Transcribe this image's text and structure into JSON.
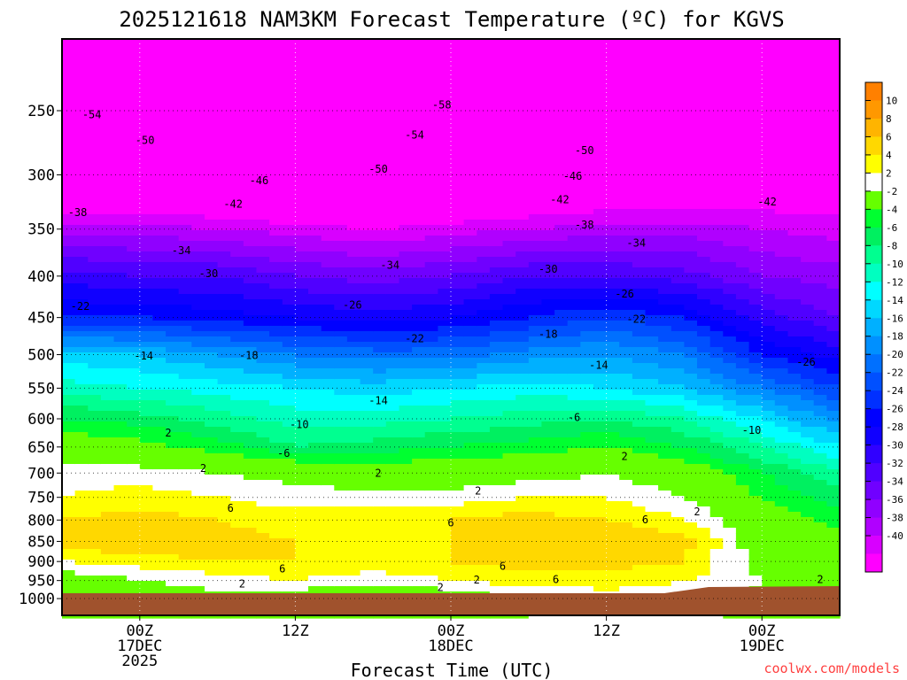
{
  "chart_data": {
    "type": "heatmap",
    "title": "2025121618 NAM3KM Forecast Temperature (ºC) for KGVS",
    "xlabel": "Forecast Time (UTC)",
    "ylabel": "",
    "credit": "coolwx.com/models",
    "xlim_hours": [
      0,
      60
    ],
    "ylim_hpa": [
      1048,
      204
    ],
    "x_ticks": [
      {
        "hour": 6,
        "line1": "00Z",
        "line2": "17DEC",
        "line3": "2025"
      },
      {
        "hour": 18,
        "line1": "12Z",
        "line2": "",
        "line3": ""
      },
      {
        "hour": 30,
        "line1": "00Z",
        "line2": "18DEC",
        "line3": ""
      },
      {
        "hour": 42,
        "line1": "12Z",
        "line2": "",
        "line3": ""
      },
      {
        "hour": 54,
        "line1": "00Z",
        "line2": "19DEC",
        "line3": ""
      }
    ],
    "y_ticks": [
      250,
      300,
      350,
      400,
      450,
      500,
      550,
      600,
      650,
      700,
      750,
      800,
      850,
      900,
      950,
      1000
    ],
    "grid": true,
    "hours": [
      0,
      6,
      12,
      18,
      24,
      30,
      36,
      42,
      48,
      54,
      60
    ],
    "levels_hpa": [
      200,
      250,
      300,
      350,
      400,
      450,
      500,
      550,
      600,
      650,
      700,
      750,
      800,
      850,
      900,
      950,
      1000
    ],
    "temperature_c": [
      [
        -58,
        -58,
        -58,
        -59,
        -60,
        -60,
        -59,
        -58,
        -56,
        -56,
        -55
      ],
      [
        -54,
        -54,
        -55,
        -56,
        -57,
        -58,
        -56,
        -54,
        -52,
        -52,
        -50
      ],
      [
        -47,
        -47,
        -48,
        -49,
        -50,
        -49,
        -47,
        -46,
        -45,
        -44,
        -43
      ],
      [
        -37,
        -37,
        -38,
        -39,
        -40,
        -39,
        -38,
        -37,
        -37,
        -38,
        -39
      ],
      [
        -29,
        -30,
        -30,
        -32,
        -33,
        -32,
        -30,
        -30,
        -31,
        -34,
        -35
      ],
      [
        -24,
        -24,
        -25,
        -26,
        -27,
        -26,
        -24,
        -22,
        -24,
        -29,
        -32
      ],
      [
        -13,
        -14,
        -16,
        -18,
        -19,
        -19,
        -17,
        -16,
        -18,
        -24,
        -27
      ],
      [
        -9,
        -10,
        -11,
        -12,
        -13,
        -12,
        -11,
        -12,
        -14,
        -18,
        -22
      ],
      [
        -4,
        -5,
        -7,
        -9,
        -9,
        -8,
        -7,
        -6,
        -8,
        -12,
        -17
      ],
      [
        0,
        -1,
        -3,
        -6,
        -5,
        -4,
        -3,
        -2,
        -4,
        -8,
        -12
      ],
      [
        3,
        3,
        2,
        1,
        0,
        0,
        1,
        2,
        0,
        -4,
        -8
      ],
      [
        4,
        5,
        4,
        3,
        3,
        3,
        4,
        4,
        2,
        -2,
        -5
      ],
      [
        6,
        7,
        6,
        5,
        5,
        6,
        7,
        6,
        4,
        0,
        -3
      ],
      [
        7,
        8,
        7,
        6,
        5,
        6,
        7,
        8,
        7,
        0,
        -1
      ],
      [
        4,
        5,
        6,
        6,
        5,
        6,
        7,
        7,
        6,
        1,
        0
      ],
      [
        0,
        2,
        3,
        4,
        3,
        4,
        5,
        5,
        4,
        2,
        1
      ],
      [
        -1,
        0,
        1,
        0,
        -2,
        0,
        2,
        3,
        3,
        1,
        0
      ]
    ],
    "color_bounds": [
      -40,
      -38,
      -36,
      -34,
      -32,
      -30,
      -28,
      -26,
      -24,
      -22,
      -20,
      -18,
      -16,
      -14,
      -12,
      -10,
      -8,
      -6,
      -4,
      -2,
      2,
      4,
      6,
      8,
      10
    ],
    "colors": [
      "#ff00ff",
      "#d800ff",
      "#b000ff",
      "#9000ff",
      "#7000ff",
      "#5000ff",
      "#3000ff",
      "#1000ff",
      "#0000ff",
      "#0030ff",
      "#0050ff",
      "#0070ff",
      "#0090ff",
      "#00b0ff",
      "#00d8ff",
      "#00ffff",
      "#00ffc0",
      "#00ff90",
      "#00f060",
      "#00ff30",
      "#66ff00",
      "#ffffff",
      "#ffff00",
      "#ffd800",
      "#ffb400",
      "#ff9800",
      "#ff8000"
    ],
    "colorbar_labels": [
      "10",
      "8",
      "6",
      "4",
      "2",
      "-2",
      "-4",
      "-6",
      "-8",
      "-10",
      "-12",
      "-14",
      "-16",
      "-18",
      "-20",
      "-22",
      "-24",
      "-26",
      "-28",
      "-30",
      "-32",
      "-34",
      "-36",
      "-38",
      "-40"
    ],
    "ground_color": "#a0522d",
    "contour_labels": [
      {
        "hour": 2.3,
        "p": 253,
        "text": "-54"
      },
      {
        "hour": 29.3,
        "p": 246,
        "text": "-58"
      },
      {
        "hour": 6.4,
        "p": 272,
        "text": "-50"
      },
      {
        "hour": 27.2,
        "p": 268,
        "text": "-54"
      },
      {
        "hour": 40.3,
        "p": 280,
        "text": "-50"
      },
      {
        "hour": 24.4,
        "p": 295,
        "text": "-50"
      },
      {
        "hour": 15.2,
        "p": 305,
        "text": "-46"
      },
      {
        "hour": 39.4,
        "p": 301,
        "text": "-46"
      },
      {
        "hour": 13.2,
        "p": 326,
        "text": "-42"
      },
      {
        "hour": 38.4,
        "p": 322,
        "text": "-42"
      },
      {
        "hour": 54.4,
        "p": 324,
        "text": "-42"
      },
      {
        "hour": 1.2,
        "p": 334,
        "text": "-38"
      },
      {
        "hour": 40.3,
        "p": 346,
        "text": "-38"
      },
      {
        "hour": 9.2,
        "p": 372,
        "text": "-34"
      },
      {
        "hour": 25.3,
        "p": 388,
        "text": "-34"
      },
      {
        "hour": 44.3,
        "p": 364,
        "text": "-34"
      },
      {
        "hour": 11.3,
        "p": 397,
        "text": "-30"
      },
      {
        "hour": 37.5,
        "p": 392,
        "text": "-30"
      },
      {
        "hour": 22.4,
        "p": 434,
        "text": "-26"
      },
      {
        "hour": 43.4,
        "p": 421,
        "text": "-26"
      },
      {
        "hour": 1.4,
        "p": 436,
        "text": "-22"
      },
      {
        "hour": 27.2,
        "p": 478,
        "text": "-22"
      },
      {
        "hour": 44.3,
        "p": 452,
        "text": "-22"
      },
      {
        "hour": 14.4,
        "p": 501,
        "text": "-18"
      },
      {
        "hour": 37.5,
        "p": 472,
        "text": "-18"
      },
      {
        "hour": 6.3,
        "p": 502,
        "text": "-14"
      },
      {
        "hour": 41.4,
        "p": 515,
        "text": "-14"
      },
      {
        "hour": 24.4,
        "p": 570,
        "text": "-14"
      },
      {
        "hour": 57.4,
        "p": 511,
        "text": "-26"
      },
      {
        "hour": 18.3,
        "p": 610,
        "text": "-10"
      },
      {
        "hour": 53.2,
        "p": 620,
        "text": "-10"
      },
      {
        "hour": 17.1,
        "p": 662,
        "text": "-6"
      },
      {
        "hour": 39.5,
        "p": 598,
        "text": "-6"
      },
      {
        "hour": 8.2,
        "p": 625,
        "text": "2"
      },
      {
        "hour": 10.9,
        "p": 691,
        "text": "2"
      },
      {
        "hour": 24.4,
        "p": 700,
        "text": "2"
      },
      {
        "hour": 32.1,
        "p": 737,
        "text": "2"
      },
      {
        "hour": 43.4,
        "p": 668,
        "text": "2"
      },
      {
        "hour": 49.0,
        "p": 781,
        "text": "2"
      },
      {
        "hour": 13.9,
        "p": 959,
        "text": "2"
      },
      {
        "hour": 29.2,
        "p": 969,
        "text": "2"
      },
      {
        "hour": 32.0,
        "p": 948,
        "text": "2"
      },
      {
        "hour": 58.5,
        "p": 947,
        "text": "2"
      },
      {
        "hour": 13.0,
        "p": 774,
        "text": "6"
      },
      {
        "hour": 30.0,
        "p": 806,
        "text": "6"
      },
      {
        "hour": 17.0,
        "p": 919,
        "text": "6"
      },
      {
        "hour": 34.0,
        "p": 912,
        "text": "6"
      },
      {
        "hour": 38.1,
        "p": 947,
        "text": "6"
      },
      {
        "hour": 45.0,
        "p": 799,
        "text": "6"
      }
    ]
  }
}
